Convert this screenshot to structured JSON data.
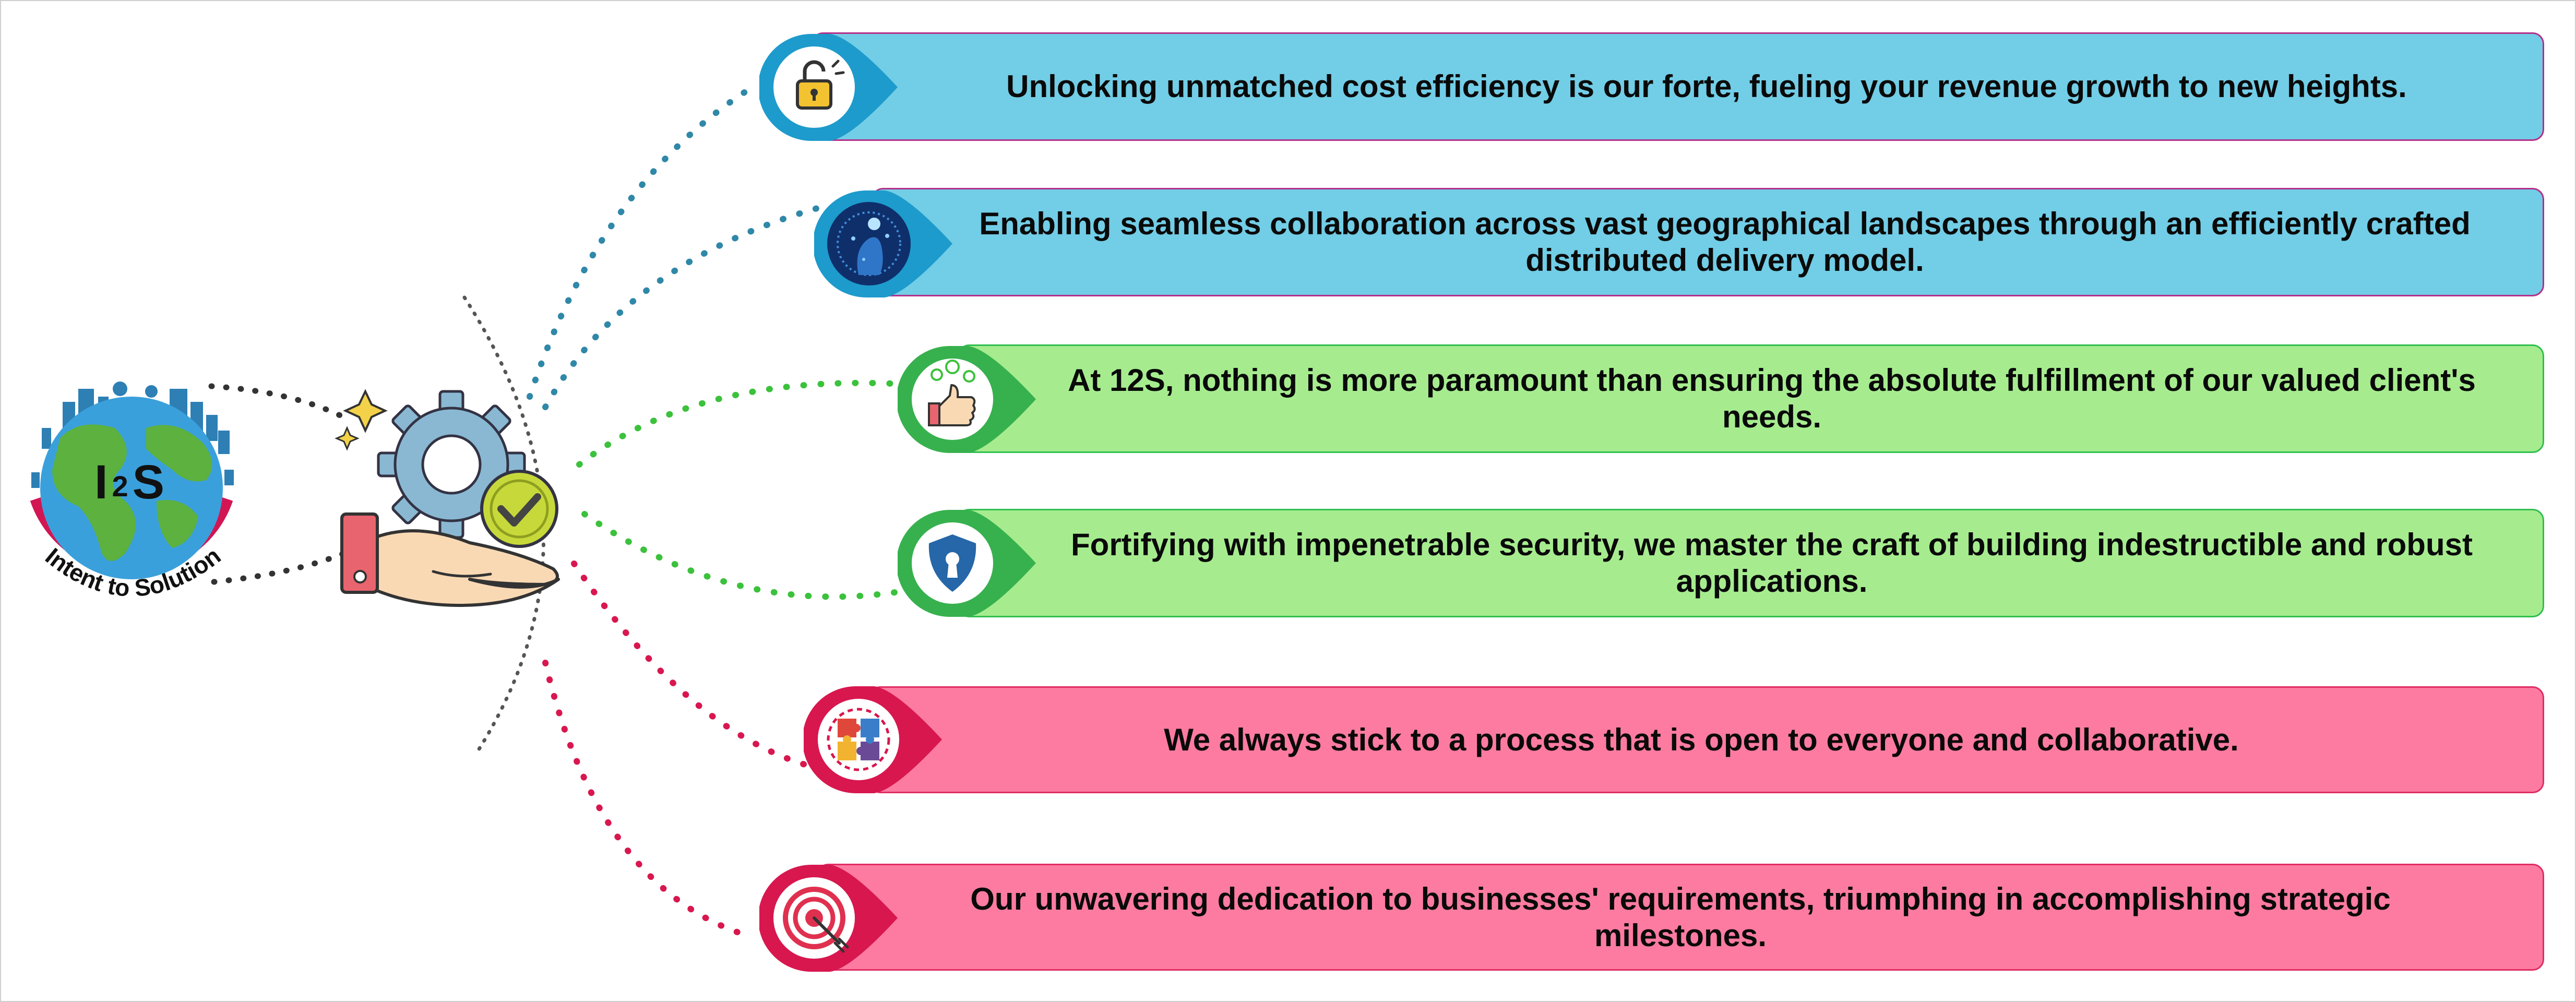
{
  "logo": {
    "brand_letters": "I2S",
    "tagline": "Intent to Solution"
  },
  "banners": [
    {
      "text": "Unlocking unmatched cost efficiency is our forte, fueling your revenue growth to new heights.",
      "icon": "padlock-icon",
      "theme": "blue"
    },
    {
      "text": "Enabling seamless collaboration across vast geographical landscapes through an efficiently crafted distributed delivery model.",
      "icon": "digital-touch-icon",
      "theme": "blue"
    },
    {
      "text": "At 12S, nothing is more paramount than ensuring the absolute fulfillment of our valued client's needs.",
      "icon": "thumbs-up-icon",
      "theme": "green"
    },
    {
      "text": "Fortifying with impenetrable security, we master the craft of building indestructible and robust applications.",
      "icon": "security-shield-icon",
      "theme": "green"
    },
    {
      "text": "We always stick to a process that is open to everyone and collaborative.",
      "icon": "puzzle-team-icon",
      "theme": "pink"
    },
    {
      "text": "Our unwavering dedication to businesses' requirements, triumphing in accomplishing strategic milestones.",
      "icon": "target-icon",
      "theme": "pink"
    }
  ],
  "colors": {
    "blue": "#72cde6",
    "green": "#a6ec8f",
    "pink": "#fd7ba0",
    "blue_dots": "#2f88a8",
    "green_dots": "#3cc13c",
    "pink_dots": "#d8174f"
  }
}
